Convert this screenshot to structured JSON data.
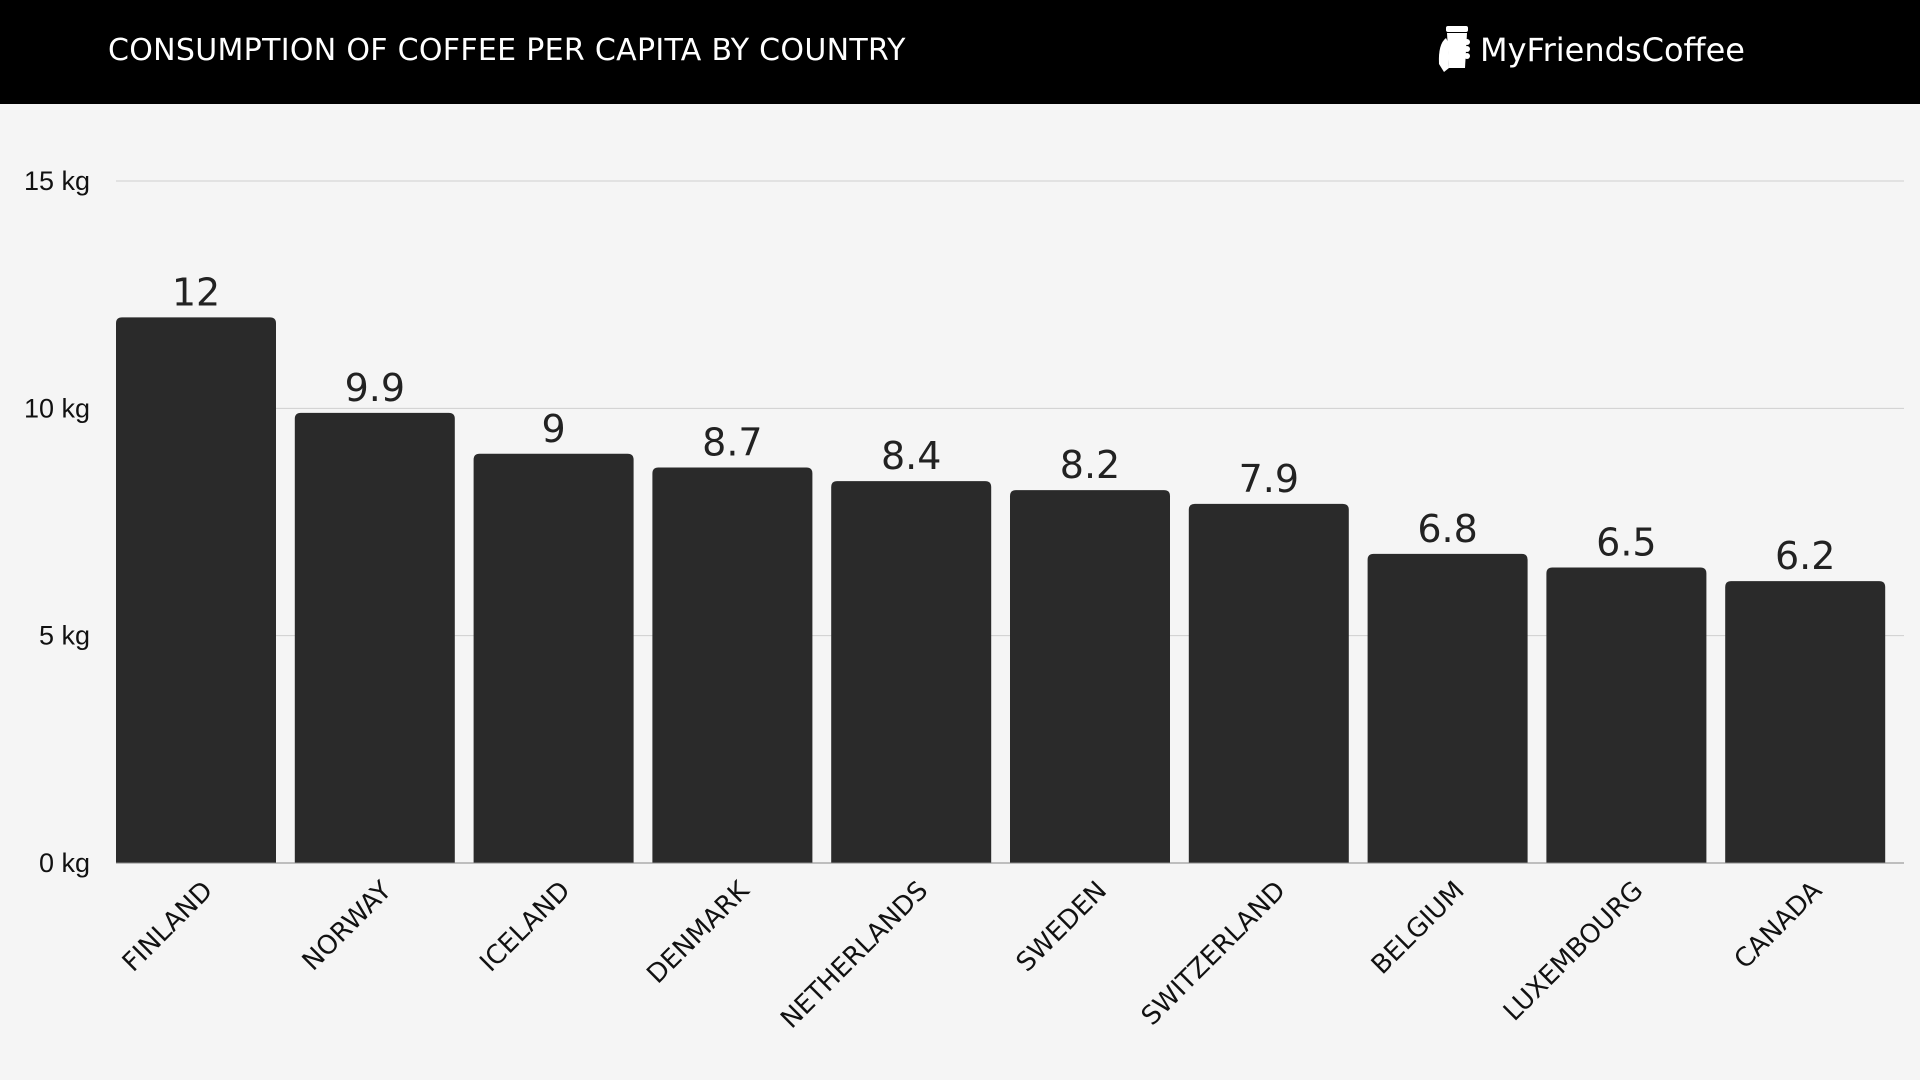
{
  "header": {
    "title": "CONSUMPTION OF COFFEE PER CAPITA BY COUNTRY",
    "brand": "MyFriendsCoffee",
    "brand_icon": "coffee-cup-in-hand-icon"
  },
  "chart_data": {
    "type": "bar",
    "title": "CONSUMPTION OF COFFEE PER CAPITA BY COUNTRY",
    "categories": [
      "FINLAND",
      "NORWAY",
      "ICELAND",
      "DENMARK",
      "NETHERLANDS",
      "SWEDEN",
      "SWITZERLAND",
      "BELGIUM",
      "LUXEMBOURG",
      "CANADA"
    ],
    "values": [
      12,
      9.9,
      9,
      8.7,
      8.4,
      8.2,
      7.9,
      6.8,
      6.5,
      6.2
    ],
    "data_labels": [
      "12",
      "9.9",
      "9",
      "8.7",
      "8.4",
      "8.2",
      "7.9",
      "6.8",
      "6.5",
      "6.2"
    ],
    "ylim": [
      0,
      15
    ],
    "yticks": [
      0,
      5,
      10,
      15
    ],
    "ytick_labels": [
      "0 kg",
      "5 kg",
      "10 kg",
      "15 kg"
    ],
    "grid": true,
    "bar_color": "#2a2a2a",
    "background": "#f5f5f5"
  }
}
